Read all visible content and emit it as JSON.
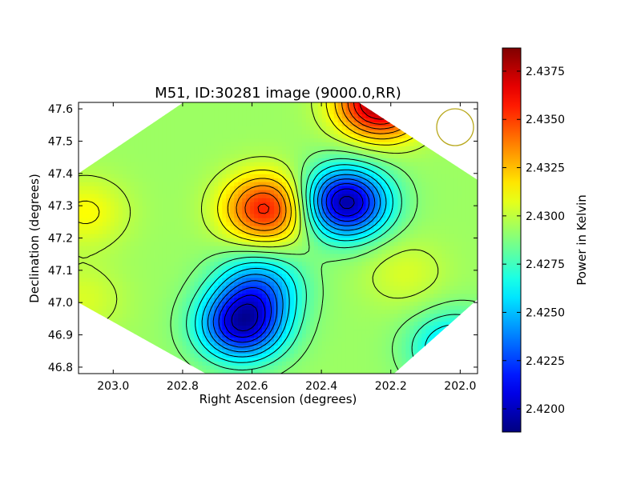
{
  "chart_data": {
    "type": "heatmap",
    "title": "M51, ID:30281 image (9000.0,RR)",
    "xlabel": "Right Ascension (degrees)",
    "ylabel": "Declination (degrees)",
    "xlim": [
      203.1,
      201.95
    ],
    "ylim": [
      46.78,
      47.62
    ],
    "x_reversed": true,
    "x_ticks": [
      "203.0",
      "202.8",
      "202.6",
      "202.4",
      "202.2",
      "202.0"
    ],
    "x_tick_values": [
      203.0,
      202.8,
      202.6,
      202.4,
      202.2,
      202.0
    ],
    "y_ticks": [
      "46.8",
      "46.9",
      "47.0",
      "47.1",
      "47.2",
      "47.3",
      "47.4",
      "47.5",
      "47.6"
    ],
    "y_tick_values": [
      46.8,
      46.9,
      47.0,
      47.1,
      47.2,
      47.3,
      47.4,
      47.5,
      47.6
    ],
    "colorbar": {
      "label": "Power in Kelvin",
      "min": 2.4188,
      "max": 2.4387,
      "colormap": "jet",
      "ticks": [
        "2.4200",
        "2.4225",
        "2.4250",
        "2.4275",
        "2.4300",
        "2.4325",
        "2.4350",
        "2.4375"
      ],
      "tick_values": [
        2.42,
        2.4225,
        2.425,
        2.4275,
        2.43,
        2.4325,
        2.435,
        2.4375
      ]
    },
    "baseline_kelvin": 2.4293,
    "features": [
      {
        "kind": "peak",
        "ra": 202.23,
        "dec": 47.62,
        "value": 2.4385
      },
      {
        "kind": "peak",
        "ra": 202.56,
        "dec": 47.29,
        "value": 2.4358
      },
      {
        "kind": "trough",
        "ra": 202.33,
        "dec": 47.31,
        "value": 2.4195
      },
      {
        "kind": "trough",
        "ra": 202.63,
        "dec": 46.93,
        "value": 2.4205
      },
      {
        "kind": "trough",
        "ra": 202.58,
        "dec": 47.05,
        "value": 2.4245
      },
      {
        "kind": "trough",
        "ra": 202.02,
        "dec": 46.86,
        "value": 2.425
      },
      {
        "kind": "peak",
        "ra": 203.08,
        "dec": 47.28,
        "value": 2.4312
      },
      {
        "kind": "peak",
        "ra": 203.09,
        "dec": 47.01,
        "value": 2.4305
      },
      {
        "kind": "peak",
        "ra": 202.16,
        "dec": 47.09,
        "value": 2.4305
      }
    ],
    "beam_marker": {
      "shape": "circle",
      "color": "#b8a81c"
    },
    "contours": true,
    "grid": false
  }
}
